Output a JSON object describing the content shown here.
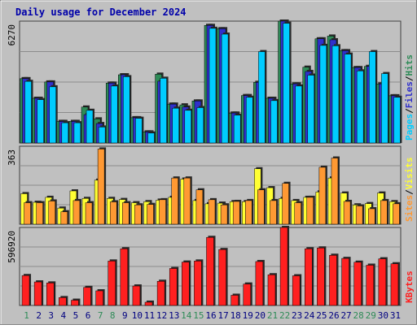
{
  "chart_data": {
    "type": "bar",
    "title": "Daily usage for December 2024",
    "colors": {
      "background": "#c0c0c0",
      "title": "#0000aa",
      "hits": "#2e8b57",
      "files": "#3030cc",
      "pages": "#00ccff",
      "visits": "#ffff33",
      "sites": "#ff9933",
      "kbytes": "#ff2020",
      "day_weekday": "#000080",
      "day_weekend": "#2e8b57"
    },
    "categories": [
      "1",
      "2",
      "3",
      "4",
      "5",
      "6",
      "7",
      "8",
      "9",
      "10",
      "11",
      "12",
      "13",
      "14",
      "15",
      "16",
      "17",
      "18",
      "19",
      "20",
      "21",
      "22",
      "23",
      "24",
      "25",
      "26",
      "27",
      "28",
      "29",
      "30",
      "31"
    ],
    "weekend_days": [
      "1",
      "7",
      "8",
      "14",
      "15",
      "21",
      "22",
      "28",
      "29"
    ],
    "panels": [
      {
        "id": "requests",
        "ymax_label": "6270",
        "ylim": [
          0,
          6270
        ],
        "side_labels": [
          {
            "text": "Pages",
            "color": "#00ccff"
          },
          {
            "text": "/",
            "color": "#000000"
          },
          {
            "text": "Files",
            "color": "#3030cc"
          },
          {
            "text": "/",
            "color": "#000000"
          },
          {
            "text": "Hits",
            "color": "#2e8b57"
          }
        ],
        "series": [
          {
            "name": "Hits",
            "color": "#2e8b57",
            "values": [
              3310,
              2300,
              3140,
              1110,
              1110,
              1850,
              1240,
              3080,
              3510,
              1300,
              570,
              3540,
              2000,
              1960,
              2160,
              6050,
              5880,
              1540,
              2440,
              3120,
              2300,
              6270,
              3040,
              3900,
              5360,
              5500,
              4750,
              3880,
              3940,
              3040,
              2430
            ]
          },
          {
            "name": "Files",
            "color": "#3030cc",
            "values": [
              3310,
              2300,
              3140,
              1110,
              1110,
              1460,
              1000,
              3080,
              3510,
              1300,
              570,
              3180,
              2000,
              1850,
              2160,
              6050,
              5880,
              1540,
              2440,
              3120,
              2300,
              6270,
              3040,
              3680,
              5360,
              5310,
              4750,
              3880,
              3940,
              3040,
              2430
            ]
          },
          {
            "name": "Pages",
            "color": "#00ccff",
            "values": [
              3170,
              2230,
              2890,
              1040,
              1040,
              1680,
              820,
              2930,
              3410,
              1270,
              510,
              3330,
              1790,
              1680,
              1820,
              5900,
              5600,
              1430,
              2350,
              4700,
              2180,
              6160,
              2930,
              3490,
              5020,
              5000,
              4570,
              3710,
              4700,
              3570,
              2350
            ]
          }
        ]
      },
      {
        "id": "visitors",
        "ymax_label": "363",
        "ylim": [
          0,
          363
        ],
        "side_labels": [
          {
            "text": "Sites",
            "color": "#ff9933"
          },
          {
            "text": "/",
            "color": "#000000"
          },
          {
            "text": "Visits",
            "color": "#ffff33"
          }
        ],
        "series": [
          {
            "name": "Visits",
            "color": "#ffff33",
            "values": [
              142,
              102,
              125,
              75,
              155,
              120,
              205,
              120,
              115,
              100,
              105,
              112,
              125,
              210,
              110,
              95,
              98,
              105,
              105,
              258,
              170,
              120,
              110,
              125,
              150,
              215,
              145,
              90,
              96,
              145,
              105
            ]
          },
          {
            "name": "Sites",
            "color": "#ff9933",
            "values": [
              100,
              100,
              108,
              58,
              110,
              100,
              350,
              104,
              100,
              90,
              92,
              114,
              215,
              215,
              160,
              114,
              90,
              106,
              110,
              160,
              110,
              190,
              100,
              125,
              265,
              308,
              106,
              85,
              72,
              110,
              95
            ]
          }
        ]
      },
      {
        "id": "traffic",
        "ymax_label": "596920",
        "ylim": [
          0,
          596920
        ],
        "side_labels": [
          {
            "text": "KBytes",
            "color": "#ff2020"
          }
        ],
        "series": [
          {
            "name": "KBytes",
            "color": "#ff2020",
            "values": [
              229000,
              180000,
              172000,
              60000,
              40000,
              138000,
              112000,
              340000,
              434000,
              149000,
              25000,
              185000,
              283000,
              332000,
              340000,
              521000,
              428000,
              78000,
              164000,
              336000,
              235000,
              596920,
              227000,
              434000,
              440000,
              384000,
              360000,
              331000,
              308000,
              357000,
              319000
            ]
          }
        ]
      }
    ]
  }
}
